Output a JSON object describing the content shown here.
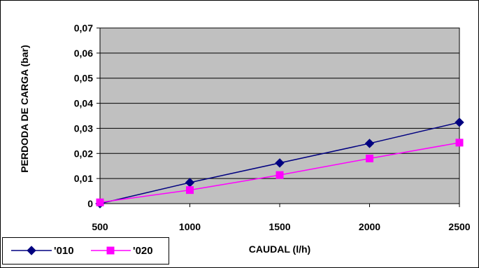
{
  "chart_data": {
    "type": "line",
    "title": "",
    "xlabel": "CAUDAL (l/h)",
    "ylabel": "PERDODA DE CARGA (bar)",
    "x": [
      500,
      1000,
      1500,
      2000,
      2500
    ],
    "x_ticks": [
      "500",
      "1000",
      "1500",
      "2000",
      "2500"
    ],
    "y_ticks": [
      "0",
      "0,01",
      "0,02",
      "0,03",
      "0,04",
      "0,05",
      "0,06",
      "0,07"
    ],
    "xlim": [
      500,
      2500
    ],
    "ylim": [
      0,
      0.07
    ],
    "grid": true,
    "legend_position": "bottom-left",
    "plot_background": "#c0c0c0",
    "series": [
      {
        "name": "'010",
        "values": [
          0.0,
          0.0084,
          0.0162,
          0.024,
          0.0324
        ],
        "color": "#000080",
        "marker": "diamond"
      },
      {
        "name": "'020",
        "values": [
          0.0005,
          0.0054,
          0.0114,
          0.018,
          0.0243
        ],
        "color": "#ff00ff",
        "marker": "square"
      }
    ]
  }
}
